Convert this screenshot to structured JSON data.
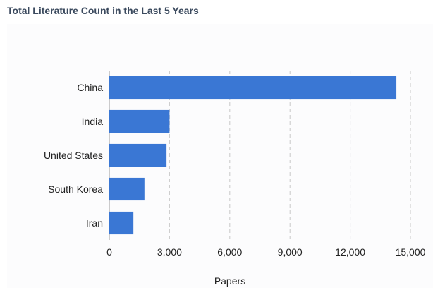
{
  "panel": {
    "title": "Total Literature Count in the Last 5 Years"
  },
  "chart_data": {
    "type": "bar",
    "orientation": "horizontal",
    "categories": [
      "China",
      "India",
      "United States",
      "South Korea",
      "Iran"
    ],
    "values": [
      14300,
      3000,
      2850,
      1750,
      1200
    ],
    "xlabel": "Papers",
    "ylabel": "",
    "xlim": [
      0,
      15000
    ],
    "xticks": [
      "0",
      "3,000",
      "6,000",
      "9,000",
      "12,000",
      "15,000"
    ],
    "grid": "vertical-dashed",
    "bar_color": "#3a77d4"
  }
}
